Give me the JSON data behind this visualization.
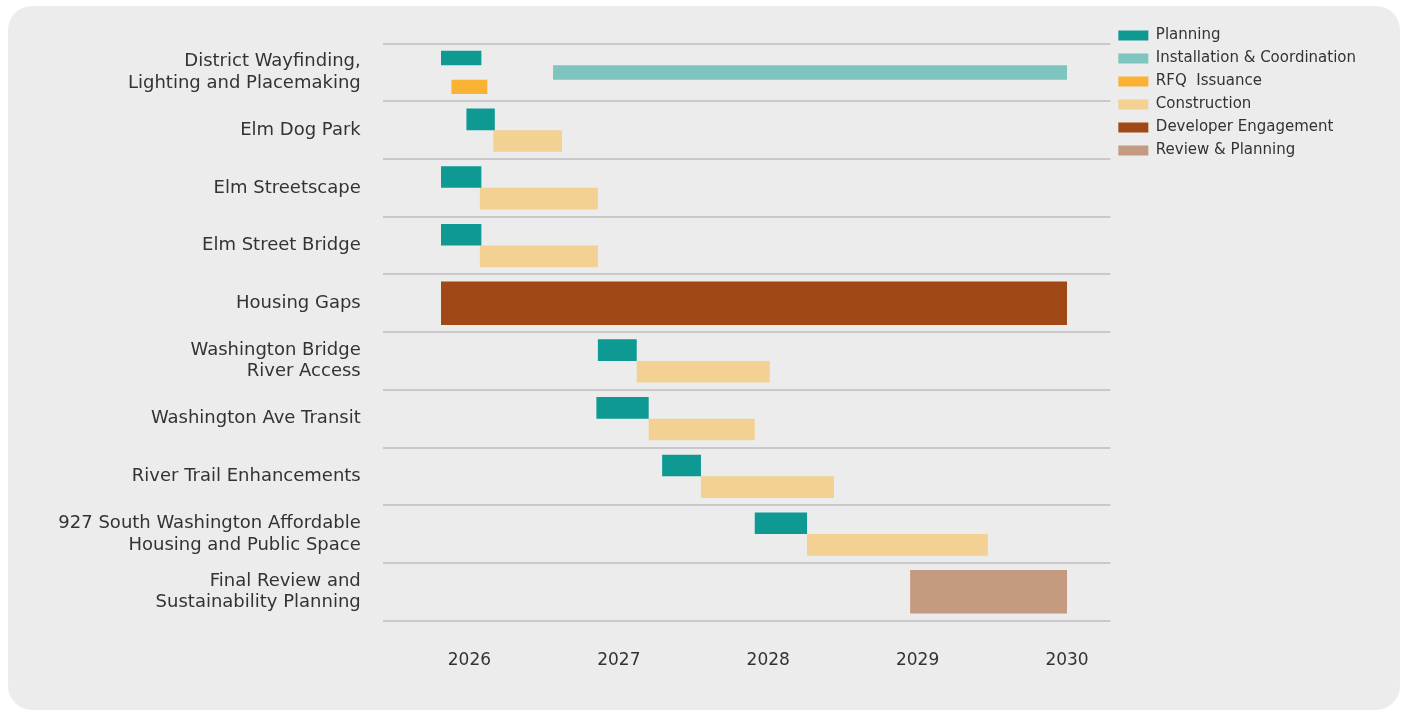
{
  "chart_data": {
    "type": "bar",
    "orientation": "horizontal",
    "categories": [
      "District Wayfinding,\nLighting and Placemaking",
      "Elm Dog Park",
      "Elm Streetscape",
      "Elm Street Bridge",
      "Housing Gaps",
      "Washington Bridge\nRiver Access",
      "Washington Ave Transit",
      "River Trail Enhancements",
      "927 South Washington Affordable\nHousing and Public Space",
      "Final Review and\nSustainability Planning"
    ],
    "series": [
      {
        "name": "Planning",
        "color": "#0e9a93",
        "base": [
          2025.81,
          2025.98,
          2025.81,
          2025.81,
          null,
          2026.86,
          2026.85,
          2027.29,
          2027.91,
          null
        ],
        "values": [
          0.27,
          0.19,
          0.27,
          0.27,
          null,
          0.26,
          0.35,
          0.26,
          0.35,
          null
        ]
      },
      {
        "name": "Installation & Coordination",
        "color": "#7ec4bf",
        "base": [
          2026.56,
          null,
          null,
          null,
          null,
          null,
          null,
          null,
          null,
          null
        ],
        "values": [
          3.44,
          null,
          null,
          null,
          null,
          null,
          null,
          null,
          null,
          null
        ]
      },
      {
        "name": "RFQ  Issuance",
        "color": "#f9b233",
        "base": [
          2025.88,
          null,
          null,
          null,
          null,
          null,
          null,
          null,
          null,
          null
        ],
        "values": [
          0.24,
          null,
          null,
          null,
          null,
          null,
          null,
          null,
          null,
          null
        ]
      },
      {
        "name": "Construction",
        "color": "#f2d192",
        "base": [
          null,
          2026.16,
          2026.07,
          2026.07,
          null,
          2027.12,
          2027.2,
          2027.55,
          2028.26,
          null
        ],
        "values": [
          null,
          0.46,
          0.79,
          0.79,
          null,
          0.89,
          0.71,
          0.89,
          1.21,
          null
        ]
      },
      {
        "name": "Developer Engagement",
        "color": "#a04816",
        "base": [
          null,
          null,
          null,
          null,
          2025.81,
          null,
          null,
          null,
          null,
          null
        ],
        "values": [
          null,
          null,
          null,
          null,
          4.19,
          null,
          null,
          null,
          null,
          null
        ]
      },
      {
        "name": "Review & Planning",
        "color": "#c49a80",
        "base": [
          null,
          null,
          null,
          null,
          null,
          null,
          null,
          null,
          null,
          2028.95
        ],
        "values": [
          null,
          null,
          null,
          null,
          null,
          null,
          null,
          null,
          null,
          1.05
        ]
      }
    ],
    "xlim": [
      2025.42,
      2030.29
    ],
    "xticks": [
      2026,
      2027,
      2028,
      2029,
      2030
    ],
    "grid": "y",
    "legend": "top right"
  }
}
